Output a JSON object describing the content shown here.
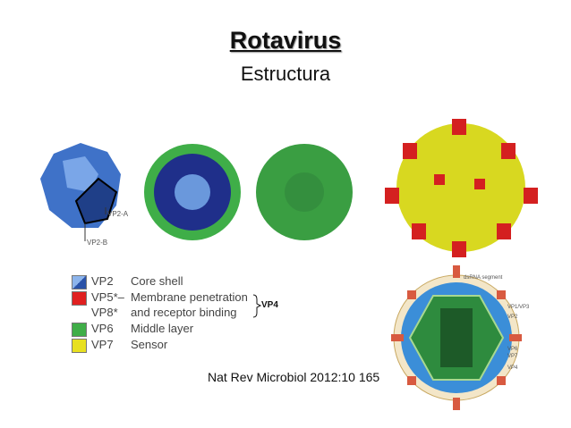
{
  "title": "Rotavirus",
  "subtitle": "Estructura",
  "citation": "Nat Rev Microbiol 2012:10 165",
  "figure_labels": {
    "vp2a": "VP2-A",
    "vp2b": "VP2-B"
  },
  "legend": [
    {
      "code": "VP2",
      "desc": "Core shell",
      "color": "#3a6fc4"
    },
    {
      "code": "VP5*–",
      "desc": "Membrane penetration",
      "color": "#e02020"
    },
    {
      "code": "VP8*",
      "desc": "and receptor binding",
      "color": ""
    },
    {
      "code": "VP6",
      "desc": "Middle layer",
      "color": "#3fae48"
    },
    {
      "code": "VP7",
      "desc": "Sensor",
      "color": "#e8e020"
    }
  ],
  "bracket_label": "VP4",
  "diagram_labels": [
    "dsRNA segment",
    "VP1/VP3",
    "VP2",
    "VP6",
    "VP7",
    "VP4"
  ]
}
